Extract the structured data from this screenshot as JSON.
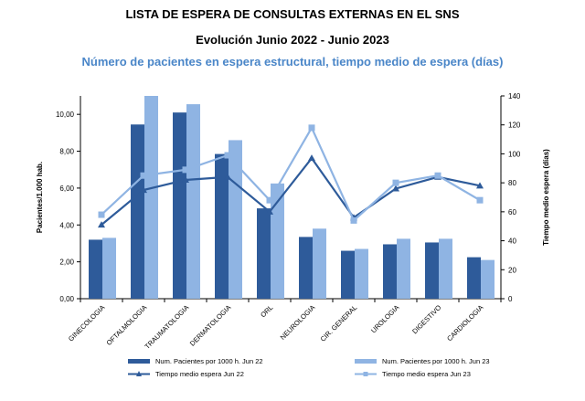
{
  "titles": {
    "line1": "LISTA DE ESPERA DE CONSULTAS EXTERNAS EN EL SNS",
    "line2": "Evolución Junio 2022 - Junio 2023",
    "line3": "Número de pacientes en espera estructural, tiempo medio de espera  (días)"
  },
  "chart_data": {
    "type": "bar",
    "categories": [
      "GINECOLOGIA",
      "OFTALMOLOGIA",
      "TRAUMATOLOGIA",
      "DERMATOLOGIA",
      "ORL",
      "NEUROLOGIA",
      "CIR. GENERAL",
      "UROLOGIA",
      "DIGESTIVO",
      "CARDIOLOGIA"
    ],
    "ylabel": "Pacientes/1.000 hab.",
    "y2label": "Tiempo medio espera (días)",
    "ylim": [
      0,
      11
    ],
    "y2lim": [
      0,
      140
    ],
    "yticks": [
      "0,00",
      "2,00",
      "4,00",
      "6,00",
      "8,00",
      "10,00"
    ],
    "y2ticks": [
      "0",
      "20",
      "40",
      "60",
      "80",
      "100",
      "120",
      "140"
    ],
    "series": [
      {
        "name": "Num. Pacientes por 1000 h.  Jun 22",
        "kind": "bar",
        "axis": "left",
        "color": "#2e5b9a",
        "values": [
          3.2,
          9.45,
          10.1,
          7.85,
          4.9,
          3.35,
          2.6,
          2.95,
          3.05,
          2.25
        ]
      },
      {
        "name": "Num. Pacientes por 1000 h.  Jun 23",
        "kind": "bar",
        "axis": "left",
        "color": "#8fb4e3",
        "values": [
          3.3,
          11.0,
          10.55,
          8.6,
          6.25,
          3.8,
          2.7,
          3.25,
          3.25,
          2.1
        ]
      },
      {
        "name": "Tiempo medio espera Jun 22",
        "kind": "line",
        "marker": "triangle",
        "axis": "right",
        "color": "#2e5b9a",
        "values": [
          51,
          75,
          82,
          84,
          60,
          97,
          56,
          76,
          84,
          78
        ]
      },
      {
        "name": "Tiempo medio espera Jun 23",
        "kind": "line",
        "marker": "square",
        "axis": "right",
        "color": "#8fb4e3",
        "values": [
          58,
          85,
          89,
          99,
          68,
          118,
          54,
          80,
          85,
          68
        ]
      }
    ],
    "legend_position": "bottom"
  }
}
